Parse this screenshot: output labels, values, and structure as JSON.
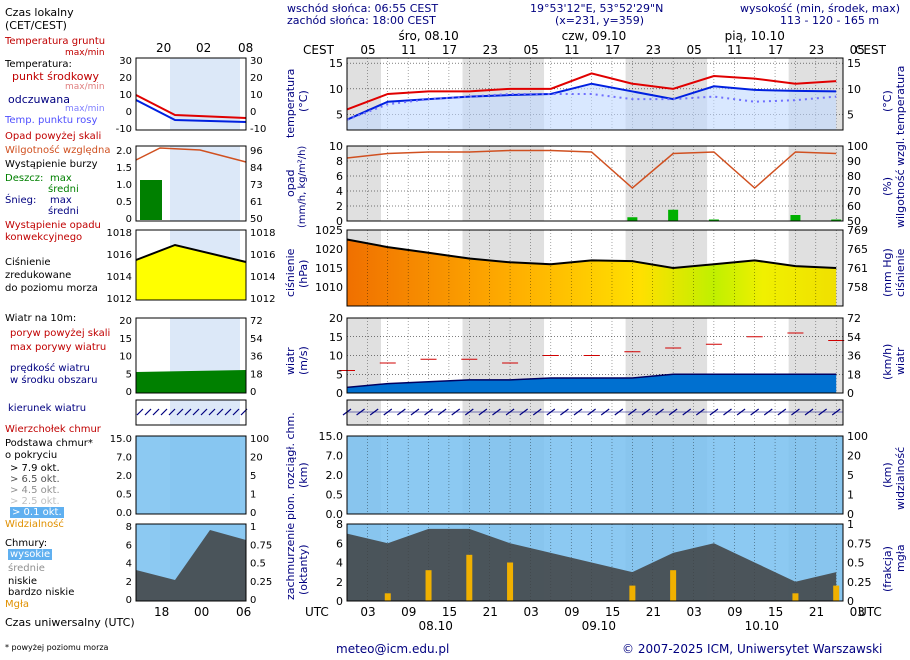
{
  "header": {
    "sunrise": "wschód słońca: 06:55 CEST",
    "sunset": "zachód słońca: 18:00 CEST",
    "coords": "19°53'12\"E, 53°52'29\"N",
    "grid": "(x=231, y=359)",
    "elev_title": "wysokość (min, środek, max)",
    "elev_values": "113 - 120 - 165 m"
  },
  "legend": {
    "local_time": "Czas lokalny",
    "local_time_sub": "(CET/CEST)",
    "soil_temp": "Temperatura gruntu",
    "soil_temp_sub": "max/min",
    "temperature": "Temperatura:",
    "mid_point": "punkt środkowy",
    "mid_max_min": "max/min",
    "perceived": "odczuwana",
    "perc_max_min": "max/min",
    "dew_point": "Temp. punktu rosy",
    "precip_over": "Opad powyżej skali",
    "humidity": "Wilgotność względna",
    "storm": "Wystąpienie burzy",
    "rain": "Deszcz:",
    "rain_max": "max",
    "rain_mean": "średni",
    "snow": "Śnieg:",
    "snow_max": "max",
    "snow_mean": "średni",
    "conv_precip": "Wystąpienie opadu",
    "conv_precip2": "konwekcyjnego",
    "pressure1": "Ciśnienie",
    "pressure2": "zredukowane",
    "pressure3": "do poziomu morza",
    "wind_at": "Wiatr na 10m:",
    "gust_over": "poryw powyżej skali",
    "gust_max": "max porywy wiatru",
    "wind_speed": "prędkość wiatru",
    "wind_area": "w środku obszaru",
    "wind_dir": "kierunek wiatru",
    "cb_top": "Wierzchołek chmur",
    "cloud_base": "Podstawa chmur*",
    "cloud_base2": "o pokryciu",
    "okt79": "> 7.9 okt.",
    "okt65": "> 6.5 okt.",
    "okt45": "> 4.5 okt.",
    "okt25": "> 2.5 okt.",
    "okt01": "> 0.1 okt.",
    "visibility": "Widzialność",
    "clouds": "Chmury:",
    "high": "wysokie",
    "mid": "średnie",
    "low": "niskie",
    "very_low": "bardzo niskie",
    "fog": "Mgła",
    "utc_time": "Czas uniwersalny (UTC)",
    "footnote": "* powyżej poziomu morza"
  },
  "left_axes": {
    "top_hours": [
      "20",
      "02",
      "08"
    ],
    "bottom_hours": [
      "18",
      "00",
      "06"
    ],
    "temp_ticks_l": [
      "30",
      "20",
      "10",
      "0",
      "-10"
    ],
    "temp_ticks_r": [
      "30",
      "20",
      "10",
      "0",
      "-10"
    ],
    "rain_ticks_l": [
      "2.0",
      "1.5",
      "1.0",
      "0.5",
      "0"
    ],
    "hum_ticks": [
      "96",
      "84",
      "73",
      "61",
      "50"
    ],
    "pres_ticks": [
      "1018",
      "1016",
      "1014",
      "1012"
    ],
    "wind_ticks_l": [
      "20",
      "15",
      "10",
      "5",
      "0"
    ],
    "wind_ticks_r": [
      "72",
      "54",
      "36",
      "18",
      "0"
    ],
    "cb_ticks_l": [
      "15.0",
      "7.0",
      "2.0",
      "0.5",
      "0.0"
    ],
    "vis_ticks": [
      "100",
      "20",
      "5",
      "1",
      "0"
    ],
    "cloud_ticks_l": [
      "8",
      "6",
      "4",
      "2",
      "0"
    ],
    "fog_ticks": [
      "1",
      "0.75",
      "0.5",
      "0.25",
      "0"
    ]
  },
  "main_axes": {
    "cest": "CEST",
    "utc": "UTC",
    "dates_top": [
      "śro, 08.10",
      "czw, 09.10",
      "pią, 10.10"
    ],
    "dates_bottom": [
      "08.10",
      "09.10",
      "10.10"
    ],
    "hours_top": [
      "05",
      "11",
      "17",
      "23",
      "05",
      "11",
      "17",
      "23",
      "05",
      "11",
      "17",
      "23",
      "05"
    ],
    "hours_bottom": [
      "03",
      "09",
      "15",
      "21",
      "03",
      "09",
      "15",
      "21",
      "03",
      "09",
      "15",
      "21",
      "03"
    ],
    "temp_label": "temperatura",
    "temp_unit": "(°C)",
    "temp_ticks": [
      "15",
      "10",
      "5"
    ],
    "precip_label": "opad",
    "precip_unit": "(mm/h, kg/m²/h)",
    "precip_ticks": [
      "10",
      "8",
      "6",
      "4",
      "2",
      "0"
    ],
    "hum_label": "wilgotność wzgl.",
    "hum_unit": "(%)",
    "hum_ticks": [
      "100",
      "90",
      "80",
      "70",
      "60",
      "50"
    ],
    "pres_label": "ciśnienie",
    "pres_unit": "(hPa)",
    "pres_ticks": [
      "1025",
      "1020",
      "1015",
      "1010"
    ],
    "pres_unit_r": "(mm Hg)",
    "pres_ticks_r": [
      "769",
      "765",
      "761",
      "758"
    ],
    "wind_label": "wiatr",
    "wind_unit": "(m/s)",
    "wind_ticks": [
      "20",
      "15",
      "10",
      "5",
      "0"
    ],
    "wind_unit_r": "(km/h)",
    "wind_ticks_r": [
      "72",
      "54",
      "36",
      "18",
      "0"
    ],
    "cb_label": "pion. rozciągł. chm.",
    "cb_unit": "(km)",
    "cb_ticks": [
      "15.0",
      "7.0",
      "2.0",
      "0.5",
      "0.0"
    ],
    "vis_label": "widzialność",
    "vis_unit": "(km)",
    "vis_ticks": [
      "100",
      "20",
      "5",
      "1",
      "0"
    ],
    "cloud_label": "zachmurzenie",
    "cloud_unit": "(oktanty)",
    "cloud_ticks": [
      "8",
      "6",
      "4",
      "2",
      "0"
    ],
    "fog_label": "mgła",
    "fog_unit": "(frakcja)",
    "fog_ticks": [
      "1",
      "0.75",
      "0.5",
      "0.25",
      "0"
    ]
  },
  "footer": {
    "email": "meteo@icm.edu.pl",
    "copyright": "© 2007-2025 ICM, Uniwersytet Warszawski"
  },
  "colors": {
    "temp": "#e00000",
    "perceived": "#0020e0",
    "dew": "#7070ff",
    "humidity": "#d05020",
    "rain": "#00b000",
    "wind_fill": "#0070d0",
    "gust": "#d00000",
    "night": "#e0e0e0",
    "pressure_high": "#f07000",
    "pressure_low": "#ffff00"
  },
  "chart_data": [
    {
      "type": "line",
      "title": "temperatura",
      "ylabel": "temperatura (°C)",
      "ylim": [
        2,
        16
      ],
      "x_hours_utc": [
        0,
        6,
        12,
        18,
        24,
        30,
        36,
        42,
        48,
        54,
        60,
        66,
        72
      ],
      "series": [
        {
          "name": "punkt środkowy",
          "values": [
            6,
            9,
            9.5,
            9.5,
            10,
            10,
            13,
            11,
            10,
            12.5,
            12,
            11,
            11.5
          ]
        },
        {
          "name": "odczuwana",
          "values": [
            4,
            7.5,
            8,
            8.5,
            8.8,
            9,
            11,
            9.5,
            8,
            10.5,
            9.8,
            9.6,
            9.5
          ]
        },
        {
          "name": "Temp. punktu rosy",
          "values": [
            4,
            7,
            8,
            8.5,
            9,
            9,
            9,
            8,
            8,
            8.5,
            7.5,
            7.8,
            8.5
          ]
        }
      ]
    },
    {
      "type": "line",
      "title": "opad / wilgotność wzgl.",
      "ylabel": "opad (mm/h, kg/m²/h)",
      "ylim": [
        0,
        10
      ],
      "x_hours_utc": [
        0,
        6,
        12,
        18,
        24,
        30,
        36,
        42,
        48,
        54,
        60,
        66,
        72
      ],
      "series": [
        {
          "name": "Wilgotność względna",
          "values": [
            92,
            95,
            96,
            96,
            97,
            97,
            96,
            72,
            95,
            96,
            72,
            96,
            95
          ]
        },
        {
          "name": "średni",
          "values": [
            0,
            0,
            0,
            0,
            0,
            0,
            0,
            0.5,
            1.5,
            0.2,
            0,
            0.8,
            0.2
          ]
        }
      ]
    },
    {
      "type": "line",
      "title": "ciśnienie",
      "ylabel": "ciśnienie (hPa)",
      "ylim": [
        1005,
        1025
      ],
      "x_hours_utc": [
        0,
        6,
        12,
        18,
        24,
        30,
        36,
        42,
        48,
        54,
        60,
        66,
        72
      ],
      "series": [
        {
          "name": "Ciśnienie",
          "values": [
            1022.5,
            1020.5,
            1019,
            1017.5,
            1016.5,
            1016,
            1017,
            1016.8,
            1015,
            1016,
            1017,
            1015.5,
            1015
          ]
        }
      ]
    },
    {
      "type": "area",
      "title": "wiatr",
      "ylabel": "wiatr (m/s)",
      "ylim": [
        0,
        20
      ],
      "x_hours_utc": [
        0,
        6,
        12,
        18,
        24,
        30,
        36,
        42,
        48,
        54,
        60,
        66,
        72
      ],
      "series": [
        {
          "name": "prędkość wiatru",
          "values": [
            1.5,
            2.5,
            3,
            3.5,
            3.5,
            4,
            4,
            4,
            5,
            5,
            5,
            5,
            5
          ]
        },
        {
          "name": "max porywy wiatru",
          "values": [
            6,
            8,
            9,
            9,
            8,
            10,
            10,
            11,
            12,
            13,
            15,
            16,
            14
          ]
        }
      ]
    },
    {
      "type": "bar",
      "title": "zachmurzenie",
      "ylabel": "zachmurzenie (oktanty)",
      "ylim": [
        0,
        8
      ],
      "x_hours_utc": [
        0,
        6,
        12,
        18,
        24,
        30,
        36,
        42,
        48,
        54,
        60,
        66,
        72
      ],
      "series": [
        {
          "name": "Mgła",
          "values": [
            0,
            0.1,
            0.4,
            0.6,
            0.5,
            0,
            0,
            0.2,
            0.4,
            0,
            0,
            0.1,
            0.2
          ]
        },
        {
          "name": "niskie",
          "values": [
            7,
            6,
            7.5,
            7.5,
            6,
            5,
            4,
            3,
            5,
            6,
            4,
            2,
            3
          ]
        }
      ]
    }
  ]
}
